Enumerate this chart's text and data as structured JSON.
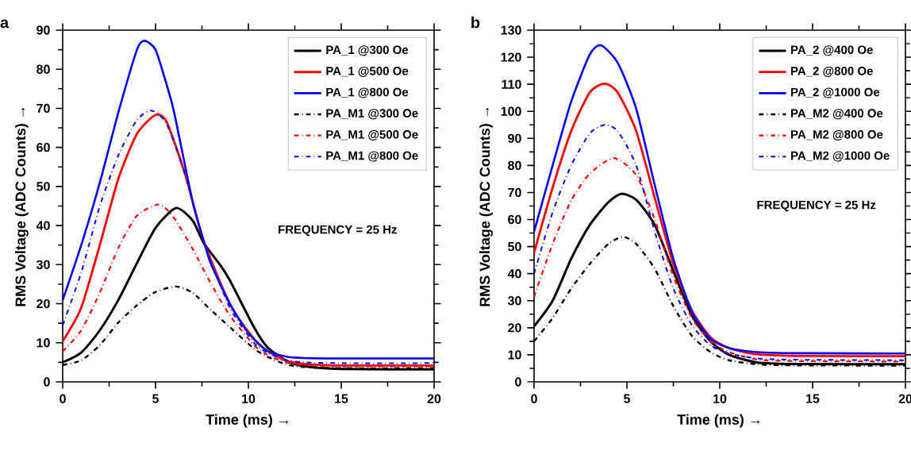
{
  "chart_data": [
    {
      "type": "line",
      "xlabel": "Time (ms) →",
      "ylabel": "RMS Voltage (ADC Counts) →",
      "annotations": [
        "a",
        "FREQUENCY = 25 Hz"
      ],
      "legend": "top right",
      "xlim": [
        0,
        20
      ],
      "ylim": [
        0,
        90
      ],
      "xticks": [
        0,
        5,
        10,
        15,
        20
      ],
      "yticks": [
        0,
        10,
        20,
        30,
        40,
        50,
        60,
        70,
        80,
        90
      ],
      "series": [
        {
          "name": "PA_1 @300 Oe",
          "color": "#000000",
          "line_style": "solid",
          "x": [
            0,
            1,
            2,
            3,
            4,
            5,
            6.1,
            7,
            7.6,
            8.5,
            9,
            10.3,
            11,
            12,
            13,
            15,
            20
          ],
          "values": [
            5.0,
            7.5,
            13.2,
            21,
            30.4,
            39.4,
            44.5,
            41.3,
            35.5,
            29.8,
            26,
            14,
            9,
            5.5,
            4,
            3.3,
            3.2
          ]
        },
        {
          "name": "PA_1 @500 Oe",
          "color": "#ff0000",
          "line_style": "solid",
          "x": [
            0,
            1,
            2,
            3,
            4,
            5,
            5.6,
            6.6,
            7.6,
            9,
            10.3,
            11,
            12,
            13,
            15,
            20
          ],
          "values": [
            10.4,
            19,
            35,
            52,
            63.5,
            68.3,
            66.5,
            53,
            36,
            20,
            11,
            8,
            5.5,
            4.6,
            4.2,
            4.2
          ]
        },
        {
          "name": "PA_1 @800 Oe",
          "color": "#0000ff",
          "line_style": "solid",
          "x": [
            0,
            1,
            2,
            3,
            4,
            4.4,
            5,
            5.6,
            6,
            7,
            7.6,
            8,
            9,
            10,
            11,
            12,
            13,
            15,
            20
          ],
          "values": [
            20.9,
            35,
            51,
            69,
            85,
            87.3,
            85,
            76,
            69,
            46,
            36,
            30,
            20,
            12.5,
            8,
            6.5,
            6.1,
            6,
            6
          ]
        },
        {
          "name": "PA_M1 @300 Oe",
          "color": "#000000",
          "line_style": "dashdot",
          "x": [
            0,
            1,
            2,
            3,
            4,
            5,
            6.1,
            7,
            8,
            9,
            10.3,
            11,
            12,
            13,
            15,
            20
          ],
          "values": [
            4.3,
            5.5,
            9.4,
            15.2,
            19.6,
            23,
            24.4,
            22.8,
            18.3,
            14,
            8.5,
            6.5,
            4.5,
            3.8,
            3.5,
            3.5
          ]
        },
        {
          "name": "PA_M1 @500 Oe",
          "color": "#ff0000",
          "line_style": "dashdot",
          "x": [
            0,
            1,
            2,
            3,
            4,
            5.2,
            6,
            7,
            8,
            9,
            10.3,
            11,
            12,
            13,
            15,
            20
          ],
          "values": [
            7.8,
            13.2,
            22.8,
            34.3,
            42.5,
            45.4,
            41.9,
            34,
            25,
            17,
            9.4,
            7,
            5,
            4.3,
            4,
            4
          ]
        },
        {
          "name": "PA_M1 @800 Oe",
          "color": "#0000ff",
          "line_style": "dashdot",
          "x": [
            0,
            1,
            2,
            3,
            4,
            4.8,
            5.6,
            6.6,
            7.6,
            9,
            10.3,
            11,
            12,
            13,
            15,
            20
          ],
          "values": [
            14.5,
            28,
            45,
            58,
            67,
            69.4,
            66,
            53,
            36,
            19,
            10,
            7.5,
            5.6,
            5,
            4.8,
            4.8
          ]
        }
      ]
    },
    {
      "type": "line",
      "xlabel": "Time (ms) →",
      "ylabel": "RMS Voltage (ADC Counts) →",
      "annotations": [
        "b",
        "FREQUENCY = 25 Hz"
      ],
      "legend": "top right",
      "xlim": [
        0,
        20
      ],
      "ylim": [
        0,
        130
      ],
      "xticks": [
        0,
        5,
        10,
        15,
        20
      ],
      "yticks": [
        0,
        10,
        20,
        30,
        40,
        50,
        60,
        70,
        80,
        90,
        100,
        110,
        120,
        130
      ],
      "series": [
        {
          "name": "PA_2 @400 Oe",
          "color": "#000000",
          "line_style": "solid",
          "x": [
            0,
            1,
            2,
            3,
            4,
            4.7,
            5.5,
            6.5,
            7.5,
            8.5,
            9.5,
            10.5,
            12,
            14,
            20
          ],
          "values": [
            20.5,
            30,
            45.5,
            58,
            66.4,
            69.5,
            67.3,
            58,
            41,
            24.5,
            15,
            10,
            7.2,
            6.6,
            6.5
          ]
        },
        {
          "name": "PA_2 @800 Oe",
          "color": "#ff0000",
          "line_style": "solid",
          "x": [
            0,
            1,
            2,
            3,
            3.8,
            4.5,
            5.5,
            6.5,
            7.5,
            8.5,
            9.5,
            10.5,
            12,
            14,
            20
          ],
          "values": [
            47.7,
            71.8,
            92.7,
            107,
            110.2,
            107,
            92.7,
            68,
            43.6,
            26.4,
            16.5,
            12.5,
            10.2,
            9.6,
            9.5
          ]
        },
        {
          "name": "PA_2 @1000 Oe",
          "color": "#0000ff",
          "line_style": "solid",
          "x": [
            0,
            1,
            2,
            3,
            3.6,
            4.5,
            5.5,
            6.5,
            7.5,
            8.5,
            9.5,
            10.5,
            12,
            14,
            20
          ],
          "values": [
            55.5,
            80,
            103.6,
            121,
            124.4,
            118,
            101,
            72.7,
            45.5,
            26,
            16,
            12.5,
            11,
            10.6,
            10.5
          ]
        },
        {
          "name": "PA_M2 @400 Oe",
          "color": "#000000",
          "line_style": "dashdot",
          "x": [
            0,
            1,
            2,
            3,
            4,
            4.8,
            5.5,
            6.5,
            7.5,
            8.5,
            9.5,
            10.5,
            12,
            14,
            20
          ],
          "values": [
            15,
            23.6,
            34.5,
            43.6,
            51,
            53.6,
            51,
            41.8,
            28,
            17,
            11,
            8,
            6.5,
            6.1,
            6
          ]
        },
        {
          "name": "PA_M2 @800 Oe",
          "color": "#ff0000",
          "line_style": "dashdot",
          "x": [
            0,
            1,
            2,
            3,
            4.3,
            5.5,
            6.5,
            7.5,
            8.5,
            9.5,
            10.5,
            12,
            14,
            20
          ],
          "values": [
            31.4,
            51,
            67,
            77,
            82.7,
            76.4,
            60,
            39,
            23.6,
            15,
            11,
            8.3,
            7.7,
            7.5
          ]
        },
        {
          "name": "PA_M2 @1000 Oe",
          "color": "#0000ff",
          "line_style": "dashdot",
          "x": [
            0,
            1,
            2,
            3,
            3.8,
            4.5,
            5.5,
            6.5,
            7.5,
            8.5,
            9.5,
            10.5,
            12,
            14,
            20
          ],
          "values": [
            40,
            62.7,
            80,
            91.8,
            95,
            92.7,
            80,
            55.5,
            34.5,
            21,
            13.5,
            10.5,
            8.7,
            8.2,
            8
          ]
        }
      ]
    }
  ]
}
